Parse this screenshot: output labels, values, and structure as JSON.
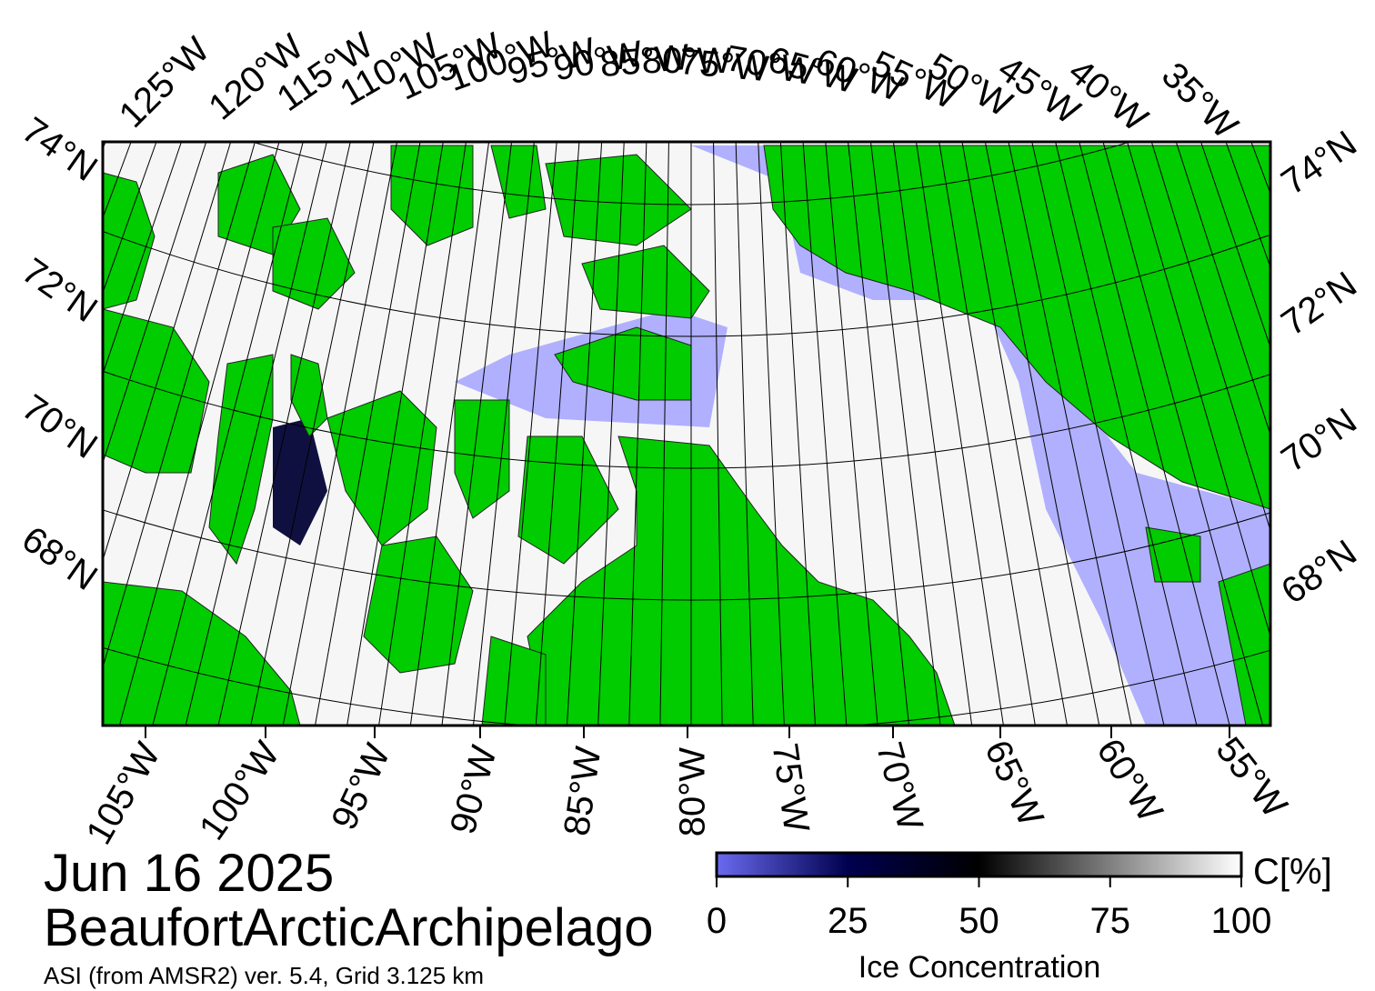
{
  "title": "Jun 16 2025",
  "region": "BeaufortArcticArchipelago",
  "source": "ASI (from AMSR2) ver. 5.4,  Grid 3.125 km",
  "top_labels": [
    "125°W",
    "120°W",
    "115°W",
    "110°W",
    "105°W",
    "100°W",
    "95°W",
    "90°W",
    "85°W",
    "80°W",
    "75°W",
    "70°W",
    "65°W",
    "60°W",
    "55°W",
    "50°W",
    "45°W",
    "40°W",
    "35°W"
  ],
  "left_labels": [
    "74°N",
    "72°N",
    "70°N",
    "68°N"
  ],
  "right_labels": [
    "74°N",
    "72°N",
    "70°N",
    "68°N"
  ],
  "bottom_labels": [
    "105°W",
    "100°W",
    "95°W",
    "90°W",
    "85°W",
    "80°W",
    "75°W",
    "70°W",
    "65°W",
    "60°W",
    "55°W"
  ],
  "colorbar": {
    "unit": "C[%]",
    "label": "Ice Concentration",
    "lim": [
      0,
      100
    ],
    "ticks": [
      0,
      25,
      50,
      75,
      100
    ]
  }
}
